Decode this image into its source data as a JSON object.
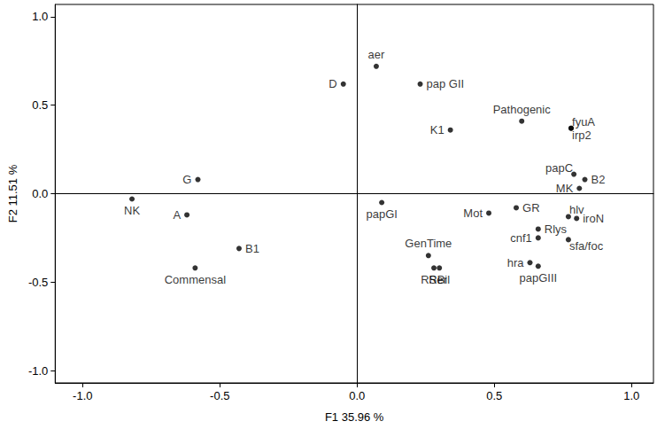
{
  "chart_data": {
    "type": "scatter",
    "x_label": "F1 35.96 %",
    "y_label": "F2 11.51 %",
    "labels": [
      "aer",
      "D",
      "pap GII",
      "K1",
      "Pathogenic",
      "fyuA",
      "irp2",
      "papC",
      "B2",
      "MK",
      "G",
      "NK",
      "A",
      "B1",
      "Commensal",
      "papGI",
      "Mot",
      "GR",
      "hlv",
      "iroN",
      "Rlys",
      "cnf1",
      "sfa/foc",
      "GenTime",
      "RSer",
      "RBil",
      "hra",
      "papGIII"
    ],
    "x": [
      0.07,
      -0.05,
      0.23,
      0.34,
      0.6,
      0.78,
      0.78,
      0.79,
      0.83,
      0.81,
      -0.58,
      -0.82,
      -0.62,
      -0.43,
      -0.59,
      0.09,
      0.48,
      0.58,
      0.77,
      0.8,
      0.66,
      0.66,
      0.77,
      0.26,
      0.28,
      0.3,
      0.63,
      0.66
    ],
    "values": [
      0.72,
      0.62,
      0.62,
      0.36,
      0.41,
      0.37,
      0.37,
      0.11,
      0.08,
      0.03,
      0.08,
      -0.03,
      -0.12,
      -0.31,
      -0.42,
      -0.05,
      -0.11,
      -0.08,
      -0.13,
      -0.14,
      -0.2,
      -0.25,
      -0.26,
      -0.35,
      -0.42,
      -0.42,
      -0.39,
      -0.41
    ],
    "xlim": [
      -1.1,
      1.08
    ],
    "ylim": [
      -1.07,
      1.07
    ],
    "xticks": [
      {
        "value": -1,
        "label": "-1.0"
      },
      {
        "value": -0.5,
        "label": "-0.5"
      },
      {
        "value": 0,
        "label": "0.0"
      },
      {
        "value": 0.5,
        "label": "0.5"
      },
      {
        "value": 1,
        "label": "1.0"
      }
    ],
    "yticks": [
      {
        "value": -1,
        "label": "-1.0"
      },
      {
        "value": -0.5,
        "label": "-0.5"
      },
      {
        "value": 0,
        "label": "0.0"
      },
      {
        "value": 0.5,
        "label": "0.5"
      },
      {
        "value": 1,
        "label": "1.0"
      }
    ],
    "color": "#000000",
    "marker": "circle",
    "grid": false
  }
}
